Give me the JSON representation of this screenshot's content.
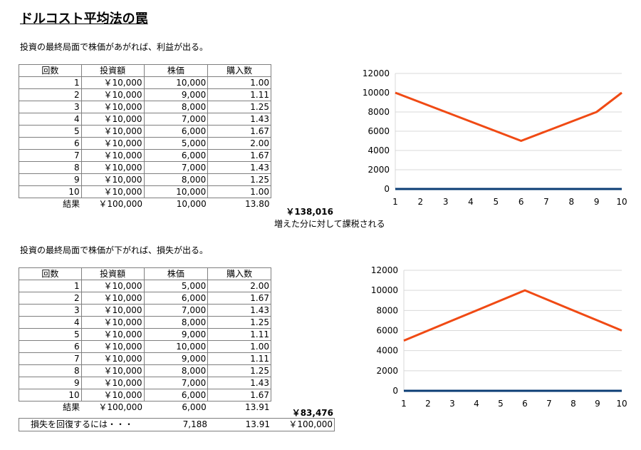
{
  "page": {
    "title": "ドルコスト平均法の罠",
    "note_top": "投資の最終局面で株価があがれば、利益が出る。",
    "note_bottom": "投資の最終局面で株価が下がれば、損失が出る。",
    "tax_note": "増えた分に対して課税される"
  },
  "table_top": {
    "headers": [
      "回数",
      "投資額",
      "株価",
      "購入数"
    ],
    "rows": [
      [
        "1",
        "￥10,000",
        "10,000",
        "1.00"
      ],
      [
        "2",
        "￥10,000",
        "9,000",
        "1.11"
      ],
      [
        "3",
        "￥10,000",
        "8,000",
        "1.25"
      ],
      [
        "4",
        "￥10,000",
        "7,000",
        "1.43"
      ],
      [
        "5",
        "￥10,000",
        "6,000",
        "1.67"
      ],
      [
        "6",
        "￥10,000",
        "5,000",
        "2.00"
      ],
      [
        "7",
        "￥10,000",
        "6,000",
        "1.67"
      ],
      [
        "8",
        "￥10,000",
        "7,000",
        "1.43"
      ],
      [
        "9",
        "￥10,000",
        "8,000",
        "1.25"
      ],
      [
        "10",
        "￥10,000",
        "10,000",
        "1.00"
      ]
    ],
    "summary": {
      "label": "結果",
      "amount": "￥100,000",
      "price": "10,000",
      "qty": "13.80",
      "value": "￥138,016"
    }
  },
  "table_bottom": {
    "headers": [
      "回数",
      "投資額",
      "株価",
      "購入数"
    ],
    "rows": [
      [
        "1",
        "￥10,000",
        "5,000",
        "2.00"
      ],
      [
        "2",
        "￥10,000",
        "6,000",
        "1.67"
      ],
      [
        "3",
        "￥10,000",
        "7,000",
        "1.43"
      ],
      [
        "4",
        "￥10,000",
        "8,000",
        "1.25"
      ],
      [
        "5",
        "￥10,000",
        "9,000",
        "1.11"
      ],
      [
        "6",
        "￥10,000",
        "10,000",
        "1.00"
      ],
      [
        "7",
        "￥10,000",
        "9,000",
        "1.11"
      ],
      [
        "8",
        "￥10,000",
        "8,000",
        "1.25"
      ],
      [
        "9",
        "￥10,000",
        "7,000",
        "1.43"
      ],
      [
        "10",
        "￥10,000",
        "6,000",
        "1.67"
      ]
    ],
    "summary": {
      "label": "結果",
      "amount": "￥100,000",
      "price": "6,000",
      "qty": "13.91",
      "value": "￥83,476"
    },
    "recovery": {
      "label": "損失を回復するには・・・",
      "price": "7,188",
      "qty": "13.91",
      "value": "￥100,000"
    }
  },
  "chart_data": [
    {
      "type": "line",
      "x": [
        1,
        2,
        3,
        4,
        5,
        6,
        7,
        8,
        9,
        10
      ],
      "series": [
        {
          "values": [
            10000,
            9000,
            8000,
            7000,
            6000,
            5000,
            6000,
            7000,
            8000,
            10000
          ],
          "color": "#f04a14"
        },
        {
          "values": [
            1,
            1.11,
            1.25,
            1.43,
            1.67,
            2,
            1.67,
            1.43,
            1.25,
            1
          ],
          "color": "#0b3d75"
        }
      ],
      "ylim": [
        0,
        12000
      ],
      "yticks": [
        0,
        2000,
        4000,
        6000,
        8000,
        10000,
        12000
      ],
      "grid": true
    },
    {
      "type": "line",
      "x": [
        1,
        2,
        3,
        4,
        5,
        6,
        7,
        8,
        9,
        10
      ],
      "series": [
        {
          "values": [
            5000,
            6000,
            7000,
            8000,
            9000,
            10000,
            9000,
            8000,
            7000,
            6000
          ],
          "color": "#f04a14"
        },
        {
          "values": [
            2,
            1.67,
            1.43,
            1.25,
            1.11,
            1,
            1.11,
            1.25,
            1.43,
            1.67
          ],
          "color": "#0b3d75"
        }
      ],
      "ylim": [
        0,
        12000
      ],
      "yticks": [
        0,
        2000,
        4000,
        6000,
        8000,
        10000,
        12000
      ],
      "grid": true
    }
  ]
}
